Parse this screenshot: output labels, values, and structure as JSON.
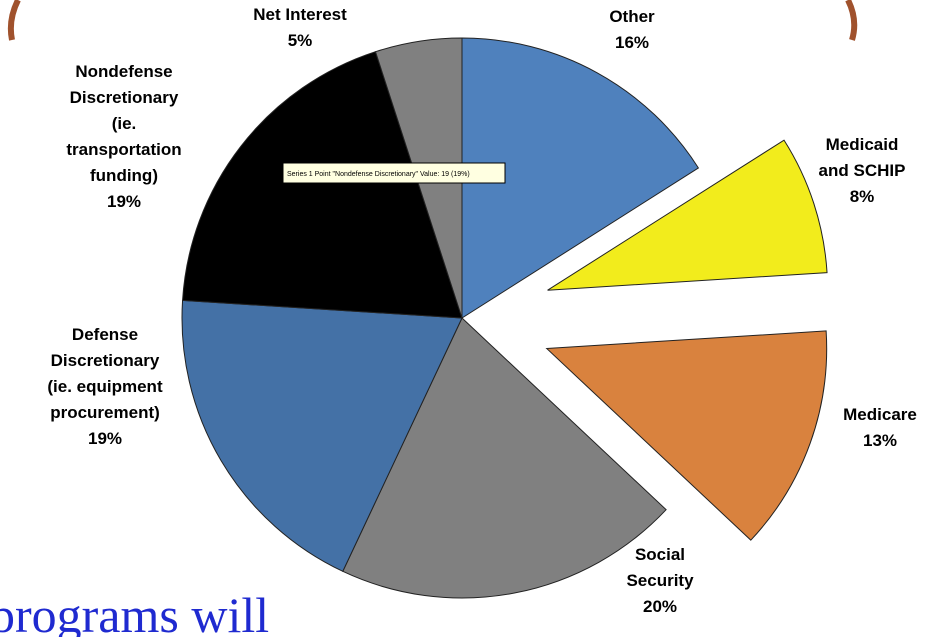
{
  "chart_data": {
    "type": "pie",
    "categories": [
      "Other",
      "Medicaid\nand SCHIP",
      "Medicare",
      "Social\nSecurity",
      "Defense\nDiscretionary\n(ie. equipment\nprocurement)",
      "Nondefense\nDiscretionary\n(ie.\ntransportation\nfunding)",
      "Net Interest"
    ],
    "values": [
      16,
      8,
      13,
      20,
      19,
      19,
      5
    ],
    "value_labels": [
      "16%",
      "8%",
      "13%",
      "20%",
      "19%",
      "19%",
      "5%"
    ],
    "colors": [
      "#4f81bd",
      "#f2ec1c",
      "#d9823e",
      "#808080",
      "#4471a6",
      "#000000",
      "#808080"
    ],
    "exploded": [
      false,
      true,
      true,
      false,
      false,
      false,
      false
    ],
    "tooltip": "Series 1 Point \"Nondefense Discretionary\" Value: 19 (19%)"
  },
  "body_text": "programs will"
}
